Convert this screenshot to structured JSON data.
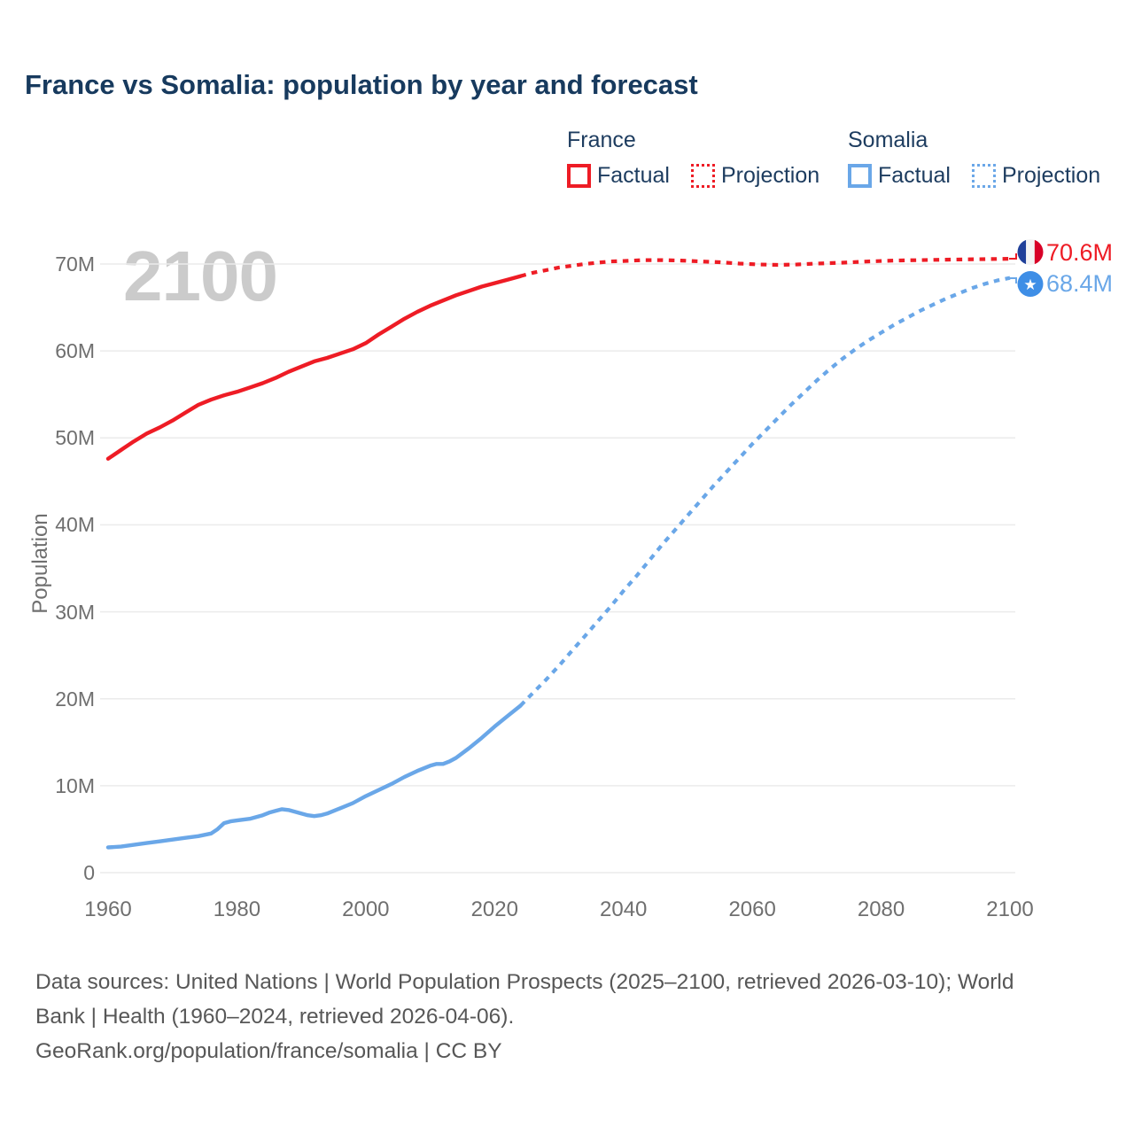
{
  "title": "France vs Somalia: population by year and forecast",
  "watermark": "2100",
  "colors": {
    "france_line": "#ee1c25",
    "somalia_line": "#6aa7e8",
    "title_text": "#173a5e",
    "legend_text": "#1d3c5f",
    "tick_text": "#6f6f6f",
    "gridline": "#ebebeb",
    "watermark_text": "#cbcbcb",
    "footer_text": "#575757",
    "france_flag_blue": "#20409a",
    "france_flag_white": "#f4f4f4",
    "france_flag_red": "#d80027",
    "somalia_flag_blue": "#3e8ee6"
  },
  "legend": {
    "groups": [
      {
        "name": "France",
        "color": "#ee1c25",
        "items": [
          {
            "label": "Factual",
            "style": "solid"
          },
          {
            "label": "Projection",
            "style": "dotted"
          }
        ]
      },
      {
        "name": "Somalia",
        "color": "#6aa7e8",
        "items": [
          {
            "label": "Factual",
            "style": "solid"
          },
          {
            "label": "Projection",
            "style": "dotted"
          }
        ]
      }
    ]
  },
  "end_labels": [
    {
      "series": "France",
      "value": "70.6M",
      "color": "#ee1c25",
      "flag": "france-flag"
    },
    {
      "series": "Somalia",
      "value": "68.4M",
      "color": "#6aa7e8",
      "flag": "somalia-flag"
    }
  ],
  "footer": {
    "lines": [
      "Data sources: United Nations | World Population Prospects (2025–2100, retrieved 2026-03-10); World",
      "Bank | Health (1960–2024, retrieved 2026-04-06).",
      "GeoRank.org/population/france/somalia | CC BY"
    ]
  },
  "chart_data": {
    "type": "line",
    "title": "France vs Somalia: population by year and forecast",
    "xlabel": "",
    "ylabel": "Population",
    "x_range": [
      1960,
      2100
    ],
    "y_range_millions": [
      0,
      70
    ],
    "grid": "horizontal",
    "legend_position": "top-right",
    "x_ticks": [
      1960,
      1980,
      2000,
      2020,
      2040,
      2060,
      2080,
      2100
    ],
    "y_ticks": [
      {
        "v": 0,
        "label": "0"
      },
      {
        "v": 10,
        "label": "10M"
      },
      {
        "v": 20,
        "label": "20M"
      },
      {
        "v": 30,
        "label": "30M"
      },
      {
        "v": 40,
        "label": "40M"
      },
      {
        "v": 50,
        "label": "50M"
      },
      {
        "v": 60,
        "label": "60M"
      },
      {
        "v": 70,
        "label": "70M"
      }
    ],
    "unit": "millions of people",
    "series": [
      {
        "name": "France Factual",
        "color": "#ee1c25",
        "style": "solid",
        "points": [
          [
            1960,
            47.6
          ],
          [
            1962,
            48.6
          ],
          [
            1964,
            49.6
          ],
          [
            1966,
            50.5
          ],
          [
            1968,
            51.2
          ],
          [
            1970,
            52.0
          ],
          [
            1972,
            52.9
          ],
          [
            1974,
            53.8
          ],
          [
            1976,
            54.4
          ],
          [
            1978,
            54.9
          ],
          [
            1980,
            55.3
          ],
          [
            1982,
            55.8
          ],
          [
            1984,
            56.3
          ],
          [
            1986,
            56.9
          ],
          [
            1988,
            57.6
          ],
          [
            1990,
            58.2
          ],
          [
            1992,
            58.8
          ],
          [
            1994,
            59.2
          ],
          [
            1996,
            59.7
          ],
          [
            1998,
            60.2
          ],
          [
            2000,
            60.9
          ],
          [
            2002,
            61.9
          ],
          [
            2004,
            62.8
          ],
          [
            2006,
            63.7
          ],
          [
            2008,
            64.5
          ],
          [
            2010,
            65.2
          ],
          [
            2012,
            65.8
          ],
          [
            2014,
            66.4
          ],
          [
            2016,
            66.9
          ],
          [
            2018,
            67.4
          ],
          [
            2020,
            67.8
          ],
          [
            2022,
            68.2
          ],
          [
            2024,
            68.6
          ]
        ]
      },
      {
        "name": "France Projection",
        "color": "#ee1c25",
        "style": "dotted",
        "end_label": "70.6M",
        "points": [
          [
            2024,
            68.6
          ],
          [
            2026,
            69.0
          ],
          [
            2028,
            69.3
          ],
          [
            2030,
            69.6
          ],
          [
            2032,
            69.8
          ],
          [
            2034,
            70.0
          ],
          [
            2036,
            70.15
          ],
          [
            2038,
            70.3
          ],
          [
            2040,
            70.35
          ],
          [
            2043,
            70.45
          ],
          [
            2046,
            70.45
          ],
          [
            2049,
            70.4
          ],
          [
            2052,
            70.3
          ],
          [
            2055,
            70.2
          ],
          [
            2058,
            70.05
          ],
          [
            2061,
            69.95
          ],
          [
            2064,
            69.9
          ],
          [
            2067,
            69.95
          ],
          [
            2070,
            70.05
          ],
          [
            2074,
            70.15
          ],
          [
            2078,
            70.3
          ],
          [
            2082,
            70.4
          ],
          [
            2086,
            70.45
          ],
          [
            2090,
            70.5
          ],
          [
            2095,
            70.55
          ],
          [
            2100,
            70.6
          ]
        ]
      },
      {
        "name": "Somalia Factual",
        "color": "#6aa7e8",
        "style": "solid",
        "points": [
          [
            1960,
            2.9
          ],
          [
            1962,
            3.0
          ],
          [
            1964,
            3.2
          ],
          [
            1966,
            3.4
          ],
          [
            1968,
            3.6
          ],
          [
            1970,
            3.8
          ],
          [
            1972,
            4.0
          ],
          [
            1974,
            4.2
          ],
          [
            1976,
            4.5
          ],
          [
            1977,
            5.0
          ],
          [
            1978,
            5.7
          ],
          [
            1979,
            5.9
          ],
          [
            1980,
            6.0
          ],
          [
            1982,
            6.2
          ],
          [
            1984,
            6.6
          ],
          [
            1985,
            6.9
          ],
          [
            1986,
            7.1
          ],
          [
            1987,
            7.3
          ],
          [
            1988,
            7.2
          ],
          [
            1989,
            7.0
          ],
          [
            1990,
            6.8
          ],
          [
            1991,
            6.6
          ],
          [
            1992,
            6.5
          ],
          [
            1993,
            6.6
          ],
          [
            1994,
            6.8
          ],
          [
            1996,
            7.4
          ],
          [
            1998,
            8.0
          ],
          [
            2000,
            8.8
          ],
          [
            2002,
            9.5
          ],
          [
            2004,
            10.2
          ],
          [
            2006,
            11.0
          ],
          [
            2008,
            11.7
          ],
          [
            2010,
            12.3
          ],
          [
            2011,
            12.5
          ],
          [
            2012,
            12.5
          ],
          [
            2013,
            12.8
          ],
          [
            2014,
            13.2
          ],
          [
            2016,
            14.3
          ],
          [
            2018,
            15.5
          ],
          [
            2020,
            16.8
          ],
          [
            2022,
            18.0
          ],
          [
            2024,
            19.2
          ]
        ]
      },
      {
        "name": "Somalia Projection",
        "color": "#6aa7e8",
        "style": "dotted",
        "end_label": "68.4M",
        "points": [
          [
            2024,
            19.2
          ],
          [
            2026,
            20.7
          ],
          [
            2028,
            22.2
          ],
          [
            2030,
            23.8
          ],
          [
            2032,
            25.5
          ],
          [
            2034,
            27.2
          ],
          [
            2036,
            28.9
          ],
          [
            2038,
            30.6
          ],
          [
            2040,
            32.4
          ],
          [
            2042,
            34.1
          ],
          [
            2044,
            35.9
          ],
          [
            2046,
            37.7
          ],
          [
            2048,
            39.4
          ],
          [
            2050,
            41.1
          ],
          [
            2052,
            42.8
          ],
          [
            2054,
            44.5
          ],
          [
            2056,
            46.1
          ],
          [
            2058,
            47.7
          ],
          [
            2060,
            49.3
          ],
          [
            2062,
            50.8
          ],
          [
            2064,
            52.3
          ],
          [
            2066,
            53.8
          ],
          [
            2068,
            55.2
          ],
          [
            2070,
            56.6
          ],
          [
            2072,
            57.9
          ],
          [
            2074,
            59.1
          ],
          [
            2076,
            60.2
          ],
          [
            2078,
            61.2
          ],
          [
            2080,
            62.1
          ],
          [
            2082,
            63.0
          ],
          [
            2084,
            63.8
          ],
          [
            2086,
            64.6
          ],
          [
            2088,
            65.3
          ],
          [
            2090,
            66.0
          ],
          [
            2092,
            66.6
          ],
          [
            2094,
            67.2
          ],
          [
            2096,
            67.7
          ],
          [
            2098,
            68.1
          ],
          [
            2100,
            68.4
          ]
        ]
      }
    ]
  }
}
